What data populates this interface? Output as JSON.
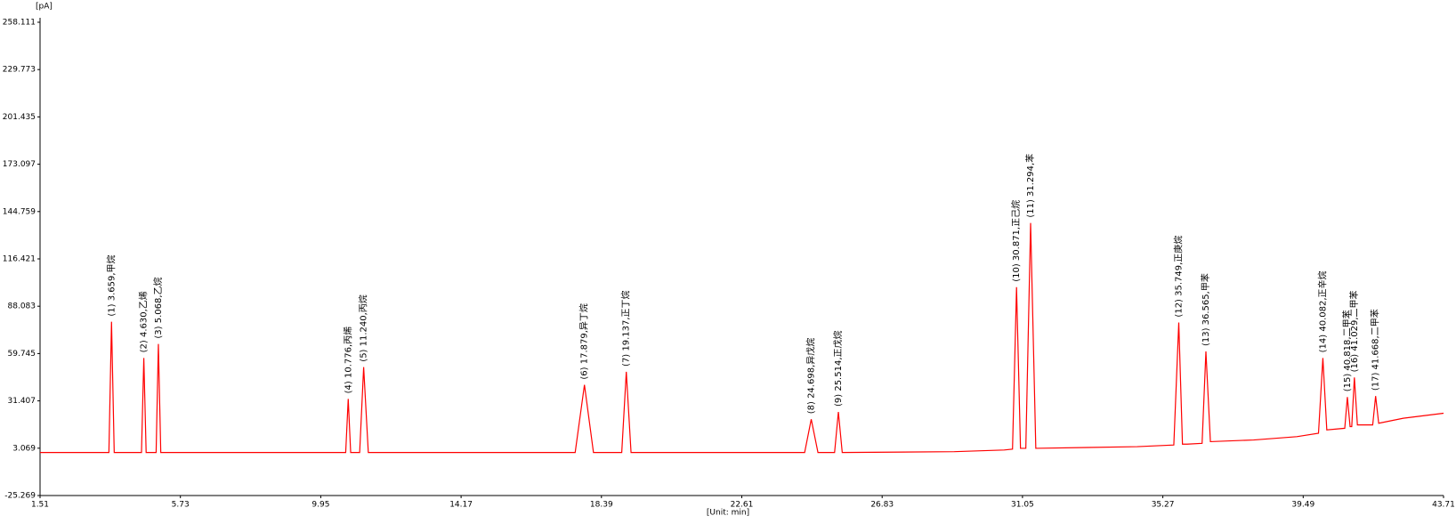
{
  "chart_data": {
    "type": "line",
    "y_unit": "[pA]",
    "x_label": "[Unit: min]",
    "xlim": [
      1.51,
      43.71
    ],
    "xticks": [
      1.51,
      5.73,
      9.95,
      14.17,
      18.39,
      22.61,
      26.83,
      31.05,
      35.27,
      39.49,
      43.71
    ],
    "ylim": [
      -25.269,
      258.111
    ],
    "yticks": [
      -25.269,
      3.069,
      31.407,
      59.745,
      88.083,
      116.421,
      144.759,
      173.097,
      201.435,
      229.773,
      258.111
    ],
    "series": [
      {
        "color": "#ff0000",
        "x": [
          1.51,
          3.58,
          3.659,
          3.74,
          4.56,
          4.63,
          4.7,
          5.0,
          5.068,
          5.14,
          10.7,
          10.776,
          10.85,
          11.12,
          11.24,
          11.38,
          17.6,
          17.879,
          18.15,
          19.0,
          19.137,
          19.28,
          24.5,
          24.698,
          24.9,
          25.4,
          25.514,
          25.63,
          29.0,
          30.5,
          30.75,
          30.871,
          30.99,
          31.15,
          31.294,
          31.45,
          33.0,
          34.5,
          35.6,
          35.749,
          35.86,
          36.0,
          36.45,
          36.565,
          36.7,
          38.0,
          39.3,
          39.95,
          40.082,
          40.2,
          40.74,
          40.818,
          40.9,
          40.95,
          41.029,
          41.12,
          41.58,
          41.668,
          41.76,
          42.5,
          43.71
        ],
        "values": [
          0.5,
          0.5,
          78.8,
          0.5,
          0.5,
          57.1,
          0.5,
          0.5,
          65.5,
          0.5,
          0.5,
          32.6,
          0.5,
          0.5,
          51.6,
          0.5,
          0.5,
          41.0,
          0.5,
          0.5,
          48.8,
          0.5,
          0.5,
          20.4,
          0.5,
          0.5,
          24.8,
          0.5,
          1.0,
          2.0,
          2.5,
          99.5,
          3.0,
          3.0,
          137.9,
          3.0,
          3.5,
          4.0,
          5.0,
          78.3,
          5.5,
          5.5,
          6.0,
          61.0,
          7.0,
          8.0,
          10.0,
          12.0,
          57.1,
          14.0,
          15.0,
          33.7,
          16.0,
          16.0,
          45.4,
          17.0,
          17.0,
          34.3,
          18.0,
          21.0,
          24.0
        ]
      }
    ],
    "annotations": [
      {
        "text": "(1) 3.659,甲烷",
        "x": 3.659,
        "y": 78.8
      },
      {
        "text": "(2) 4.630,乙烯",
        "x": 4.63,
        "y": 57.1
      },
      {
        "text": "(3) 5.068,乙烷",
        "x": 5.068,
        "y": 65.5
      },
      {
        "text": "(4) 10.776,丙烯",
        "x": 10.776,
        "y": 32.6
      },
      {
        "text": "(5) 11.240,丙烷",
        "x": 11.24,
        "y": 51.6
      },
      {
        "text": "(6) 17.879,异丁烷",
        "x": 17.879,
        "y": 41.0
      },
      {
        "text": "(7) 19.137,正丁烷",
        "x": 19.137,
        "y": 48.8
      },
      {
        "text": "(8) 24.698,异戊烷",
        "x": 24.698,
        "y": 20.4
      },
      {
        "text": "(9) 25.514,正戊烷",
        "x": 25.514,
        "y": 24.8
      },
      {
        "text": "(10) 30.871,正己烷",
        "x": 30.871,
        "y": 99.5
      },
      {
        "text": "(11) 31.294,苯",
        "x": 31.294,
        "y": 137.9
      },
      {
        "text": "(12) 35.749,正庚烷",
        "x": 35.749,
        "y": 78.3
      },
      {
        "text": "(13) 36.565,甲苯",
        "x": 36.565,
        "y": 61.0
      },
      {
        "text": "(14) 40.082,正辛烷",
        "x": 40.082,
        "y": 57.1
      },
      {
        "text": "(15) 40.818,二甲苯",
        "x": 40.818,
        "y": 33.7
      },
      {
        "text": "(16) 41.029,二甲苯",
        "x": 41.029,
        "y": 45.4
      },
      {
        "text": "(17) 41.668,二甲苯",
        "x": 41.668,
        "y": 34.3
      }
    ]
  }
}
